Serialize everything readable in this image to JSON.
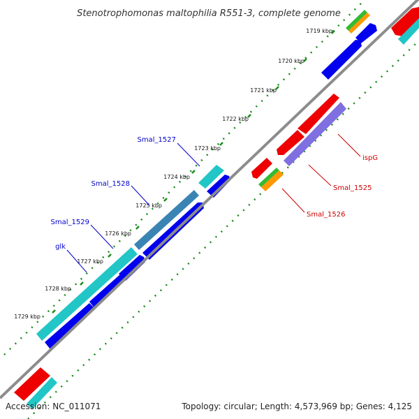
{
  "title": "Stenotrophomonas maltophilia R551-3, complete genome",
  "footer": {
    "accession": "Accession: NC_011071",
    "summary": "Topology: circular; Length: 4,573,969 bp; Genes: 4,125"
  },
  "colors": {
    "backbone": "#8c8c8c",
    "dots": "#1a8a1a",
    "forward_label": "#0000cc",
    "reverse_label": "#cc0000",
    "blue": "#0000ee",
    "cyan": "#22c6c6",
    "red": "#ee0000",
    "lavender": "#7f6fe0",
    "green": "#33bb33",
    "orange": "#ff9900"
  },
  "ticks": [
    {
      "label": "1719 kbp"
    },
    {
      "label": "1720 kbp"
    },
    {
      "label": "1721 kbp"
    },
    {
      "label": "1722 kbp"
    },
    {
      "label": "1723 kbp"
    },
    {
      "label": "1724 kbp"
    },
    {
      "label": "1725 kbp"
    },
    {
      "label": "1726 kbp"
    },
    {
      "label": "1727 kbp"
    },
    {
      "label": "1728 kbp"
    },
    {
      "label": "1729 kbp"
    }
  ],
  "gene_labels": {
    "smal_1527": "Smal_1527",
    "smal_1528": "Smal_1528",
    "smal_1529": "Smal_1529",
    "glk": "glk",
    "ispg": "ispG",
    "smal_1525": "Smal_1525",
    "smal_1526": "Smal_1526"
  }
}
